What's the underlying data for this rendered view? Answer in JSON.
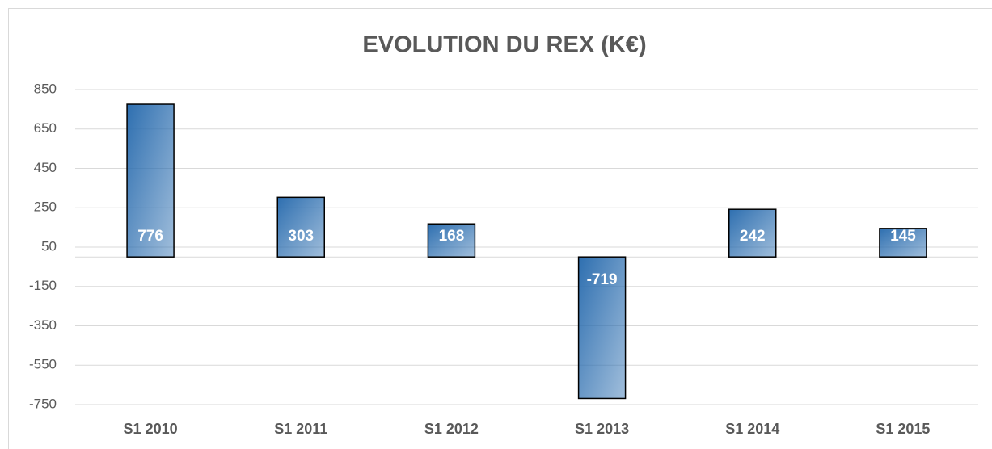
{
  "chart_data": {
    "type": "bar",
    "title": "EVOLUTION DU REX (K€)",
    "categories": [
      "S1 2010",
      "S1 2011",
      "S1 2012",
      "S1 2013",
      "S1 2014",
      "S1 2015"
    ],
    "values": [
      776,
      303,
      168,
      -719,
      242,
      145
    ],
    "color": "#2e6fb0",
    "ylim": [
      -750,
      850
    ],
    "yticks": [
      -750,
      -550,
      -350,
      -150,
      50,
      250,
      450,
      650,
      850
    ],
    "grid": true
  }
}
